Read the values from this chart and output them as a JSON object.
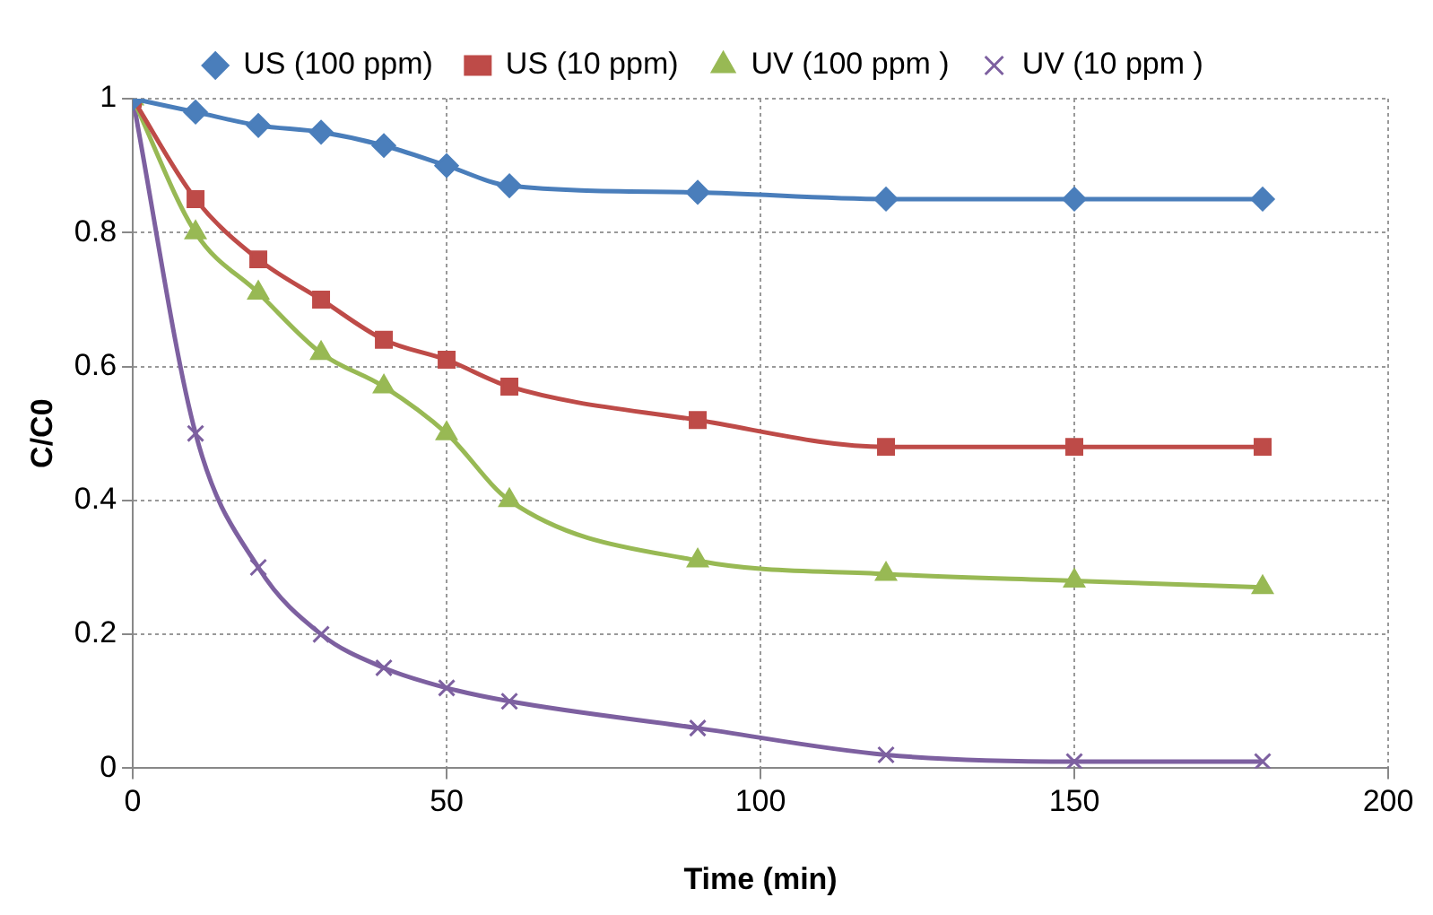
{
  "chart_data": {
    "type": "line",
    "xlabel": "Time (min)",
    "ylabel": "C/C0",
    "x": [
      0,
      10,
      20,
      30,
      40,
      50,
      60,
      90,
      120,
      150,
      180
    ],
    "series": [
      {
        "name": "US (100 ppm)",
        "color": "#4a7ebb",
        "marker": "diamond",
        "values": [
          1,
          0.98,
          0.96,
          0.95,
          0.93,
          0.9,
          0.87,
          0.86,
          0.85,
          0.85,
          0.85
        ]
      },
      {
        "name": "US (10 ppm)",
        "color": "#be4b48",
        "marker": "square",
        "values": [
          1,
          0.85,
          0.76,
          0.7,
          0.64,
          0.61,
          0.57,
          0.52,
          0.48,
          0.48,
          0.48
        ]
      },
      {
        "name": "UV (100 ppm )",
        "color": "#98b954",
        "marker": "triangle",
        "values": [
          1,
          0.8,
          0.71,
          0.62,
          0.57,
          0.5,
          0.4,
          0.31,
          0.29,
          0.28,
          0.27
        ]
      },
      {
        "name": "UV (10 ppm )",
        "color": "#7d60a0",
        "marker": "cross",
        "values": [
          1,
          0.5,
          0.3,
          0.2,
          0.15,
          0.12,
          0.1,
          0.06,
          0.02,
          0.01,
          0.01
        ]
      }
    ],
    "xlim": [
      0,
      200
    ],
    "xticks": [
      0,
      50,
      100,
      150,
      200
    ],
    "ylim": [
      0,
      1
    ],
    "yticks": [
      0,
      0.2,
      0.4,
      0.6,
      0.8,
      1
    ],
    "grid": true,
    "legend": "top",
    "line_style": "solid"
  }
}
